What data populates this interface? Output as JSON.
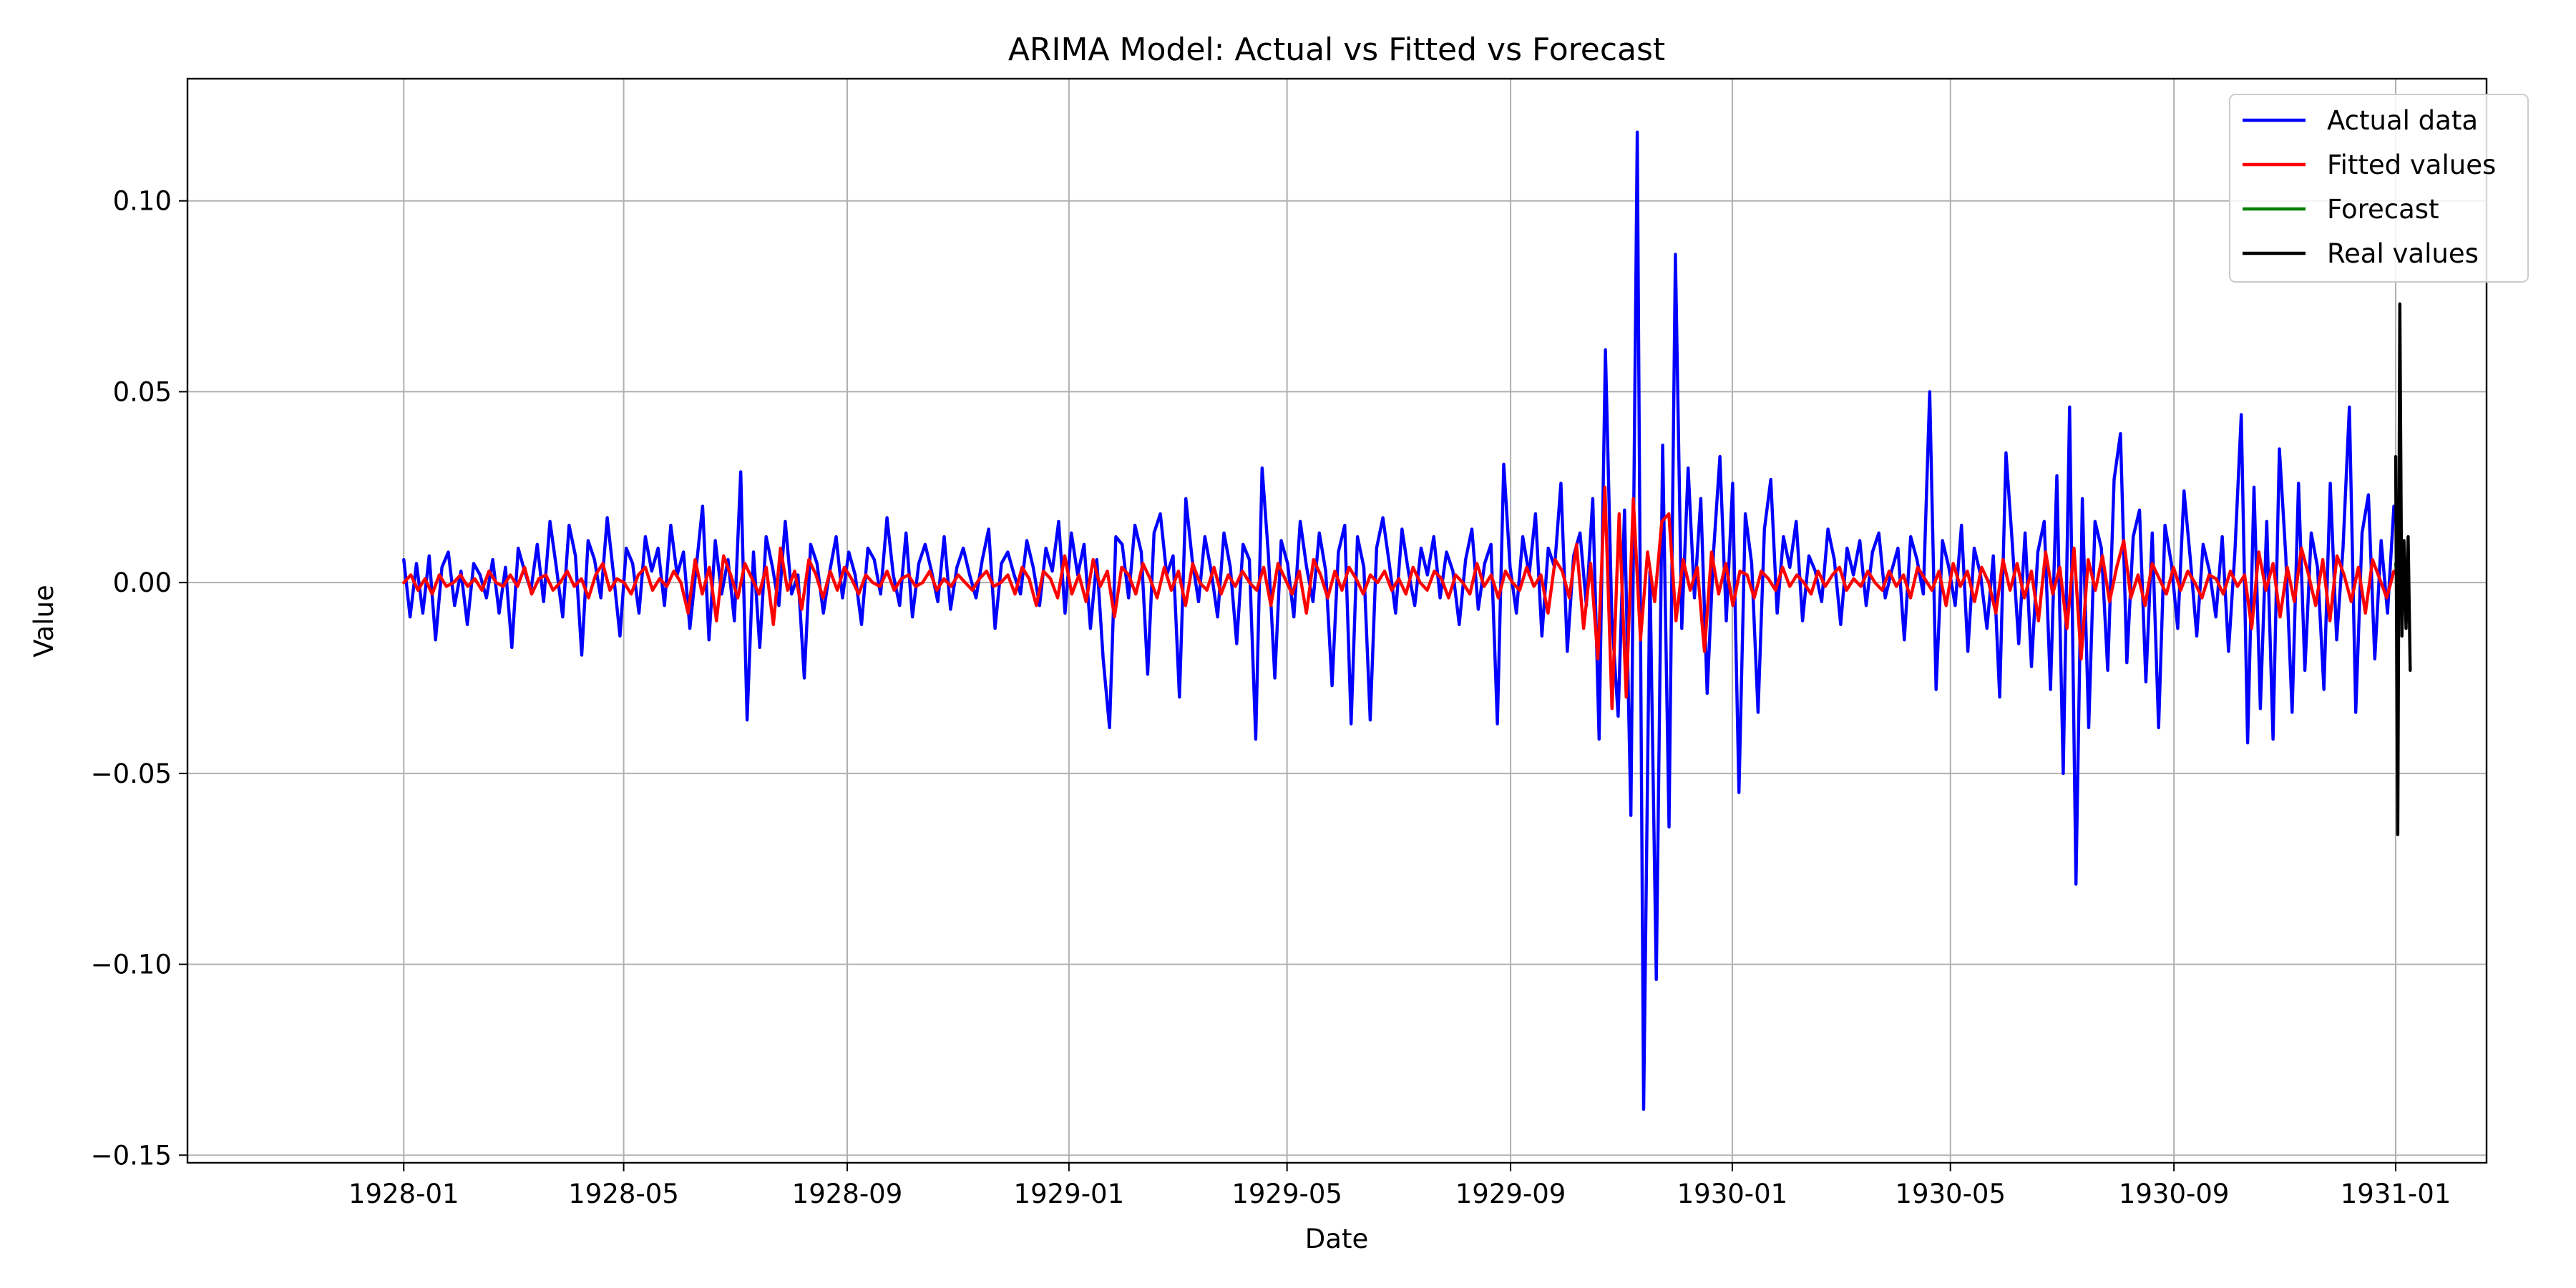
{
  "chart_data": {
    "type": "line",
    "title": "ARIMA Model: Actual vs Fitted vs Forecast",
    "xlabel": "Date",
    "ylabel": "Value",
    "xlim": [
      "1927-09-04",
      "1931-02-20"
    ],
    "ylim": [
      -0.152,
      0.132
    ],
    "grid": true,
    "legend_position": "top-right",
    "x_ticks": [
      "1928-01",
      "1928-05",
      "1928-09",
      "1929-01",
      "1929-05",
      "1929-09",
      "1930-01",
      "1930-05",
      "1930-09",
      "1931-01"
    ],
    "y_ticks": [
      0.1,
      0.05,
      0.0,
      -0.05,
      -0.1,
      -0.15
    ],
    "y_tick_labels": [
      "0.10",
      "0.05",
      "0.00",
      "−0.05",
      "−0.10",
      "−0.15"
    ],
    "series": [
      {
        "name": "Actual data",
        "color": "#0000ff",
        "x_start": "1928-01-01",
        "x_end": "1930-12-31",
        "values": [
          0.006,
          -0.009,
          0.005,
          -0.008,
          0.007,
          -0.015,
          0.004,
          0.008,
          -0.006,
          0.003,
          -0.011,
          0.005,
          0.002,
          -0.004,
          0.006,
          -0.008,
          0.004,
          -0.017,
          0.009,
          0.003,
          -0.002,
          0.01,
          -0.005,
          0.016,
          0.004,
          -0.009,
          0.015,
          0.007,
          -0.019,
          0.011,
          0.006,
          -0.004,
          0.017,
          0.002,
          -0.014,
          0.009,
          0.005,
          -0.008,
          0.012,
          0.003,
          0.009,
          -0.006,
          0.015,
          0.002,
          0.008,
          -0.012,
          0.004,
          0.02,
          -0.015,
          0.011,
          -0.003,
          0.006,
          -0.01,
          0.029,
          -0.036,
          0.008,
          -0.017,
          0.012,
          0.004,
          -0.006,
          0.016,
          -0.003,
          0.002,
          -0.025,
          0.01,
          0.005,
          -0.008,
          0.003,
          0.012,
          -0.004,
          0.008,
          0.002,
          -0.011,
          0.009,
          0.006,
          -0.003,
          0.017,
          0.002,
          -0.006,
          0.013,
          -0.009,
          0.005,
          0.01,
          0.003,
          -0.005,
          0.012,
          -0.007,
          0.004,
          0.009,
          0.002,
          -0.004,
          0.006,
          0.014,
          -0.012,
          0.005,
          0.008,
          0.002,
          -0.003,
          0.011,
          0.004,
          -0.006,
          0.009,
          0.003,
          0.016,
          -0.008,
          0.013,
          0.002,
          0.01,
          -0.012,
          0.006,
          -0.02,
          -0.038,
          0.012,
          0.01,
          -0.004,
          0.015,
          0.008,
          -0.024,
          0.013,
          0.018,
          0.002,
          0.007,
          -0.03,
          0.022,
          0.006,
          -0.005,
          0.012,
          0.003,
          -0.009,
          0.013,
          0.004,
          -0.016,
          0.01,
          0.006,
          -0.041,
          0.03,
          0.007,
          -0.025,
          0.011,
          0.005,
          -0.009,
          0.016,
          0.004,
          -0.005,
          0.013,
          0.003,
          -0.027,
          0.008,
          0.015,
          -0.037,
          0.012,
          0.004,
          -0.036,
          0.009,
          0.017,
          0.005,
          -0.008,
          0.014,
          0.003,
          -0.006,
          0.009,
          0.002,
          0.012,
          -0.004,
          0.008,
          0.003,
          -0.011,
          0.006,
          0.014,
          -0.007,
          0.005,
          0.01,
          -0.037,
          0.031,
          0.004,
          -0.008,
          0.012,
          0.002,
          0.018,
          -0.014,
          0.009,
          0.004,
          0.026,
          -0.018,
          0.007,
          0.013,
          -0.006,
          0.022,
          -0.041,
          0.061,
          -0.009,
          -0.035,
          0.019,
          -0.061,
          0.118,
          -0.138,
          0.003,
          -0.104,
          0.036,
          -0.064,
          0.086,
          -0.012,
          0.03,
          -0.004,
          0.022,
          -0.029,
          0.008,
          0.033,
          -0.01,
          0.026,
          -0.055,
          0.018,
          0.005,
          -0.034,
          0.014,
          0.027,
          -0.008,
          0.012,
          0.004,
          0.016,
          -0.01,
          0.007,
          0.003,
          -0.005,
          0.014,
          0.006,
          -0.011,
          0.009,
          0.002,
          0.011,
          -0.006,
          0.008,
          0.013,
          -0.004,
          0.003,
          0.009,
          -0.015,
          0.012,
          0.006,
          -0.003,
          0.05,
          -0.028,
          0.011,
          0.004,
          -0.006,
          0.015,
          -0.018,
          0.009,
          0.002,
          -0.012,
          0.007,
          -0.03,
          0.034,
          0.01,
          -0.016,
          0.013,
          -0.022,
          0.008,
          0.016,
          -0.028,
          0.028,
          -0.05,
          0.046,
          -0.079,
          0.022,
          -0.038,
          0.016,
          0.009,
          -0.023,
          0.027,
          0.039,
          -0.021,
          0.012,
          0.019,
          -0.026,
          0.013,
          -0.038,
          0.015,
          0.005,
          -0.012,
          0.024,
          0.006,
          -0.014,
          0.01,
          0.003,
          -0.009,
          0.012,
          -0.018,
          0.008,
          0.044,
          -0.042,
          0.025,
          -0.033,
          0.016,
          -0.041,
          0.035,
          0.007,
          -0.034,
          0.026,
          -0.023,
          0.013,
          0.004,
          -0.028,
          0.026,
          -0.015,
          0.009,
          0.046,
          -0.034,
          0.013,
          0.023,
          -0.02,
          0.011,
          -0.008,
          0.02
        ]
      },
      {
        "name": "Fitted values",
        "color": "#ff0000",
        "x_start": "1928-01-01",
        "x_end": "1930-12-31",
        "values": [
          0.0,
          0.002,
          -0.002,
          0.001,
          -0.003,
          0.002,
          -0.001,
          0.0,
          0.002,
          -0.001,
          0.001,
          -0.002,
          0.003,
          0.0,
          -0.001,
          0.002,
          -0.001,
          0.004,
          -0.003,
          0.001,
          0.002,
          -0.002,
          0.0,
          0.003,
          -0.001,
          0.001,
          -0.004,
          0.002,
          0.005,
          -0.002,
          0.001,
          0.0,
          -0.003,
          0.002,
          0.004,
          -0.002,
          0.001,
          -0.001,
          0.003,
          0.0,
          -0.008,
          0.006,
          -0.003,
          0.004,
          -0.01,
          0.007,
          0.002,
          -0.004,
          0.005,
          0.001,
          -0.003,
          0.004,
          -0.011,
          0.009,
          -0.002,
          0.003,
          -0.007,
          0.006,
          0.002,
          -0.004,
          0.003,
          -0.002,
          0.004,
          0.001,
          -0.003,
          0.002,
          0.0,
          -0.001,
          0.003,
          -0.002,
          0.001,
          0.002,
          -0.001,
          0.0,
          0.003,
          -0.002,
          0.001,
          -0.001,
          0.002,
          0.0,
          -0.002,
          0.001,
          0.003,
          -0.001,
          0.0,
          0.002,
          -0.003,
          0.004,
          0.001,
          -0.006,
          0.003,
          0.001,
          -0.004,
          0.007,
          -0.003,
          0.002,
          -0.005,
          0.006,
          -0.001,
          0.003,
          -0.009,
          0.004,
          0.002,
          -0.003,
          0.005,
          0.001,
          -0.004,
          0.004,
          -0.002,
          0.003,
          -0.006,
          0.005,
          0.0,
          -0.002,
          0.004,
          -0.003,
          0.002,
          -0.001,
          0.003,
          0.0,
          -0.002,
          0.004,
          -0.006,
          0.005,
          0.001,
          -0.003,
          0.003,
          -0.008,
          0.006,
          0.002,
          -0.004,
          0.003,
          -0.002,
          0.004,
          0.001,
          -0.003,
          0.002,
          0.0,
          0.003,
          -0.002,
          0.001,
          -0.003,
          0.004,
          0.0,
          -0.002,
          0.003,
          0.001,
          -0.004,
          0.002,
          0.0,
          -0.003,
          0.005,
          -0.001,
          0.002,
          -0.004,
          0.003,
          0.0,
          -0.002,
          0.004,
          -0.001,
          0.002,
          -0.008,
          0.006,
          0.003,
          -0.004,
          0.01,
          -0.012,
          0.005,
          -0.02,
          0.025,
          -0.033,
          0.018,
          -0.03,
          0.022,
          -0.015,
          0.008,
          -0.005,
          0.016,
          0.018,
          -0.01,
          0.006,
          -0.002,
          0.004,
          -0.018,
          0.008,
          -0.003,
          0.005,
          -0.006,
          0.003,
          0.002,
          -0.004,
          0.003,
          0.001,
          -0.002,
          0.004,
          -0.001,
          0.002,
          0.0,
          -0.003,
          0.003,
          -0.001,
          0.002,
          0.004,
          -0.002,
          0.001,
          -0.001,
          0.003,
          0.0,
          -0.002,
          0.003,
          -0.001,
          0.002,
          -0.004,
          0.004,
          0.001,
          -0.002,
          0.003,
          -0.006,
          0.005,
          -0.001,
          0.003,
          -0.005,
          0.004,
          0.0,
          -0.008,
          0.006,
          -0.002,
          0.005,
          -0.004,
          0.003,
          -0.01,
          0.008,
          -0.003,
          0.004,
          -0.012,
          0.009,
          -0.02,
          0.006,
          -0.002,
          0.007,
          -0.005,
          0.004,
          0.011,
          -0.004,
          0.002,
          -0.006,
          0.005,
          0.001,
          -0.003,
          0.004,
          -0.002,
          0.003,
          0.0,
          -0.004,
          0.002,
          0.001,
          -0.003,
          0.003,
          -0.001,
          0.002,
          -0.012,
          0.008,
          -0.002,
          0.005,
          -0.009,
          0.004,
          -0.005,
          0.009,
          0.002,
          -0.006,
          0.006,
          -0.01,
          0.007,
          0.002,
          -0.005,
          0.004,
          -0.008,
          0.006,
          0.001,
          -0.004,
          0.003
        ]
      },
      {
        "name": "Forecast",
        "color": "#008000",
        "x_start": "1931-01-01",
        "x_end": "1931-01-04",
        "values": [
          0.005,
          0.002,
          0.0,
          -0.003,
          0.001,
          -0.002,
          0.0
        ]
      },
      {
        "name": "Real values",
        "color": "#000000",
        "x_start": "1931-01-01",
        "x_end": "1931-01-09",
        "values": [
          0.033,
          -0.066,
          0.073,
          -0.014,
          0.011,
          -0.012,
          0.012,
          -0.023
        ]
      }
    ]
  }
}
